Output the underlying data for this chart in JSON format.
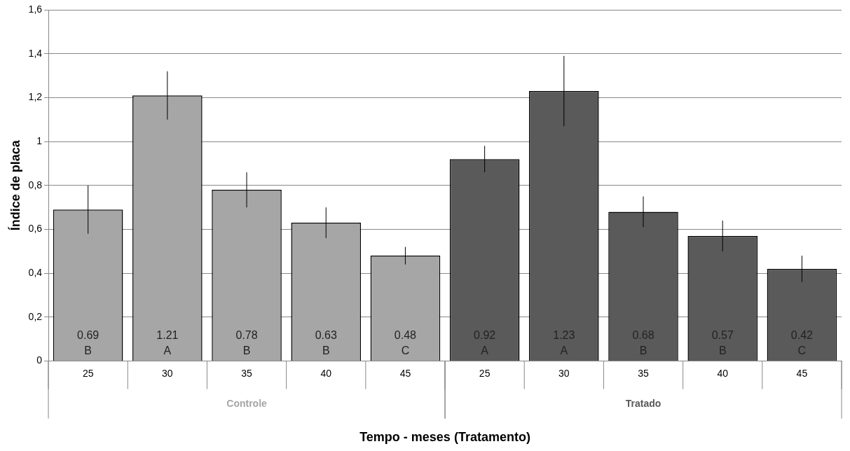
{
  "chart_data": {
    "type": "bar",
    "xlabel": "Tempo - meses (Tratamento)",
    "ylabel": "Índice de placa",
    "categories": [
      "25",
      "30",
      "35",
      "40",
      "45",
      "25",
      "30",
      "35",
      "40",
      "45"
    ],
    "series": [
      {
        "name": "Controle",
        "color": "#a6a6a6",
        "values": [
          0.69,
          1.21,
          0.78,
          0.63,
          0.48,
          null,
          null,
          null,
          null,
          null
        ],
        "errors": [
          0.11,
          0.11,
          0.08,
          0.07,
          0.04,
          null,
          null,
          null,
          null,
          null
        ],
        "value_labels": [
          "0.69\nB",
          "1.21\nA",
          "0.78\nB",
          "0.63\nB",
          "0.48\nC",
          null,
          null,
          null,
          null,
          null
        ]
      },
      {
        "name": "Tratado",
        "color": "#5a5a5a",
        "values": [
          null,
          null,
          null,
          null,
          null,
          0.92,
          1.23,
          0.68,
          0.57,
          0.42
        ],
        "errors": [
          null,
          null,
          null,
          null,
          null,
          0.06,
          0.16,
          0.07,
          0.07,
          0.06
        ],
        "value_labels": [
          null,
          null,
          null,
          null,
          null,
          "0.92\nA",
          "1.23\nA",
          "0.68\nB",
          "0.57\nB",
          "0.42\nC"
        ]
      }
    ],
    "ylim": [
      0,
      1.6
    ],
    "yticks": [
      0,
      {
        "value": 0.2,
        "label": "0,2"
      },
      {
        "value": 0.4,
        "label": "0,4"
      },
      {
        "value": 0.6,
        "label": "0,6"
      },
      {
        "value": 0.8,
        "label": "0,8"
      },
      1,
      {
        "value": 1.2,
        "label": "1,2"
      },
      {
        "value": 1.4,
        "label": "1,4"
      },
      {
        "value": 1.6,
        "label": "1,6"
      }
    ],
    "grid": "y",
    "legend": false
  }
}
